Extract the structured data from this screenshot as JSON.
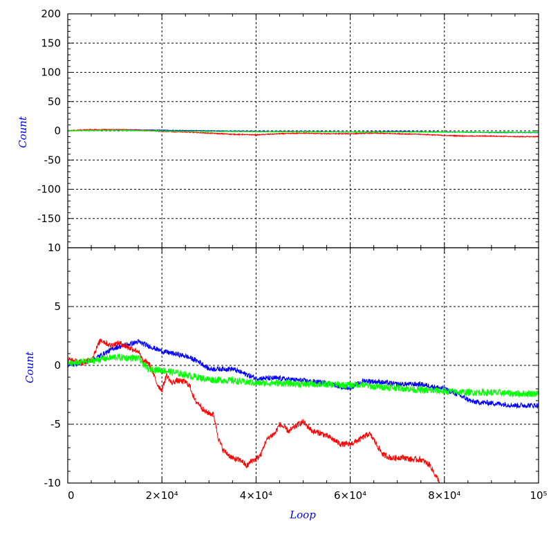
{
  "chart_data": [
    {
      "type": "line",
      "panel": "top",
      "ylabel": "Count",
      "ylim": [
        -200,
        200
      ],
      "ytick_labels": [
        "200",
        "150",
        "100",
        "50",
        "0",
        "-50",
        "-100",
        "-150"
      ],
      "xlim": [
        0,
        100000
      ],
      "grid": true,
      "series": [
        {
          "color": "#ff0000",
          "x": [
            0,
            5000,
            10000,
            15000,
            20000,
            25000,
            30000,
            35000,
            40000,
            45000,
            50000,
            55000,
            60000,
            65000,
            70000,
            75000,
            80000,
            85000,
            90000,
            95000,
            100000
          ],
          "y": [
            0,
            2,
            2,
            1,
            -1,
            -2,
            -4,
            -6,
            -7,
            -5,
            -4,
            -5,
            -5,
            -4,
            -5,
            -6,
            -8,
            -9,
            -9,
            -10,
            -10
          ]
        },
        {
          "color": "#0000ff",
          "x": [
            0,
            10000,
            20000,
            30000,
            40000,
            50000,
            60000,
            70000,
            80000,
            90000,
            100000
          ],
          "y": [
            0,
            2,
            1,
            0,
            -1,
            -1,
            -2,
            -1,
            -2,
            -3,
            -3
          ]
        },
        {
          "color": "#00ff00",
          "x": [
            0,
            10000,
            20000,
            30000,
            40000,
            50000,
            60000,
            70000,
            80000,
            90000,
            100000
          ],
          "y": [
            0,
            1,
            -0.5,
            -1,
            -1.5,
            -1.5,
            -1.8,
            -2,
            -2.2,
            -2.4,
            -2.5
          ]
        }
      ]
    },
    {
      "type": "line",
      "panel": "bottom",
      "ylabel": "Count",
      "xlabel": "Loop",
      "ylim": [
        -10,
        10
      ],
      "ytick_labels": [
        "10",
        "5",
        "0",
        "-5",
        "-10"
      ],
      "xlim": [
        0,
        100000
      ],
      "xtick_labels": [
        "0",
        "2×10⁴",
        "4×10⁴",
        "6×10⁴",
        "8×10⁴",
        "10⁵"
      ],
      "grid": true,
      "series": [
        {
          "color": "#ff0000",
          "x": [
            0,
            3000,
            5000,
            7000,
            9000,
            11000,
            13000,
            15000,
            16000,
            17000,
            18000,
            19000,
            20000,
            21000,
            22000,
            23000,
            25000,
            26000,
            27000,
            28000,
            29000,
            31000,
            32000,
            33000,
            35000,
            37000,
            38000,
            39000,
            40000,
            41000,
            42000,
            43000,
            44000,
            45000,
            47000,
            49000,
            50000,
            52000,
            54000,
            56000,
            58000,
            60000,
            62000,
            64000,
            65000,
            66000,
            67000,
            69000,
            71000,
            72000,
            73000,
            75000,
            77000,
            78000,
            79000
          ],
          "y": [
            0.5,
            0.2,
            0.5,
            2.2,
            1.7,
            1.9,
            1.5,
            1.2,
            0.3,
            0.3,
            -0.5,
            -1.6,
            -2.1,
            -0.8,
            -1.5,
            -1.3,
            -1.4,
            -1.8,
            -3.0,
            -3.3,
            -3.9,
            -4.2,
            -6.2,
            -7.2,
            -7.9,
            -8.1,
            -8.6,
            -8.1,
            -8.0,
            -7.6,
            -6.5,
            -6.0,
            -5.8,
            -5.0,
            -5.6,
            -5.0,
            -4.8,
            -5.6,
            -5.8,
            -6.2,
            -6.7,
            -6.7,
            -6.3,
            -5.8,
            -6.3,
            -7.0,
            -7.6,
            -7.9,
            -7.8,
            -7.9,
            -8.0,
            -8.0,
            -8.5,
            -9.3,
            -9.9
          ]
        },
        {
          "color": "#0000ff",
          "x": [
            0,
            5000,
            10000,
            15000,
            20000,
            25000,
            28000,
            30000,
            35000,
            40000,
            45000,
            50000,
            55000,
            58000,
            60000,
            63000,
            66000,
            70000,
            75000,
            80000,
            83000,
            86000,
            90000,
            95000,
            100000
          ],
          "y": [
            0.0,
            0.4,
            1.5,
            2.0,
            1.2,
            0.8,
            0.3,
            -0.3,
            -0.3,
            -1.1,
            -1.1,
            -1.3,
            -1.5,
            -1.8,
            -1.9,
            -1.3,
            -1.4,
            -1.6,
            -1.6,
            -2.0,
            -2.5,
            -3.1,
            -3.2,
            -3.4,
            -3.4
          ]
        },
        {
          "color": "#00ff00",
          "x": [
            0,
            5000,
            10000,
            15000,
            17000,
            20000,
            25000,
            30000,
            35000,
            40000,
            45000,
            50000,
            55000,
            60000,
            62000,
            65000,
            70000,
            75000,
            80000,
            85000,
            90000,
            95000,
            100000
          ],
          "y": [
            0.1,
            0.4,
            0.7,
            0.6,
            -0.3,
            -0.4,
            -0.8,
            -1.2,
            -1.3,
            -1.5,
            -1.5,
            -1.6,
            -1.6,
            -1.7,
            -1.6,
            -1.8,
            -1.9,
            -2.1,
            -2.2,
            -2.3,
            -2.3,
            -2.4,
            -2.4
          ]
        }
      ]
    }
  ]
}
